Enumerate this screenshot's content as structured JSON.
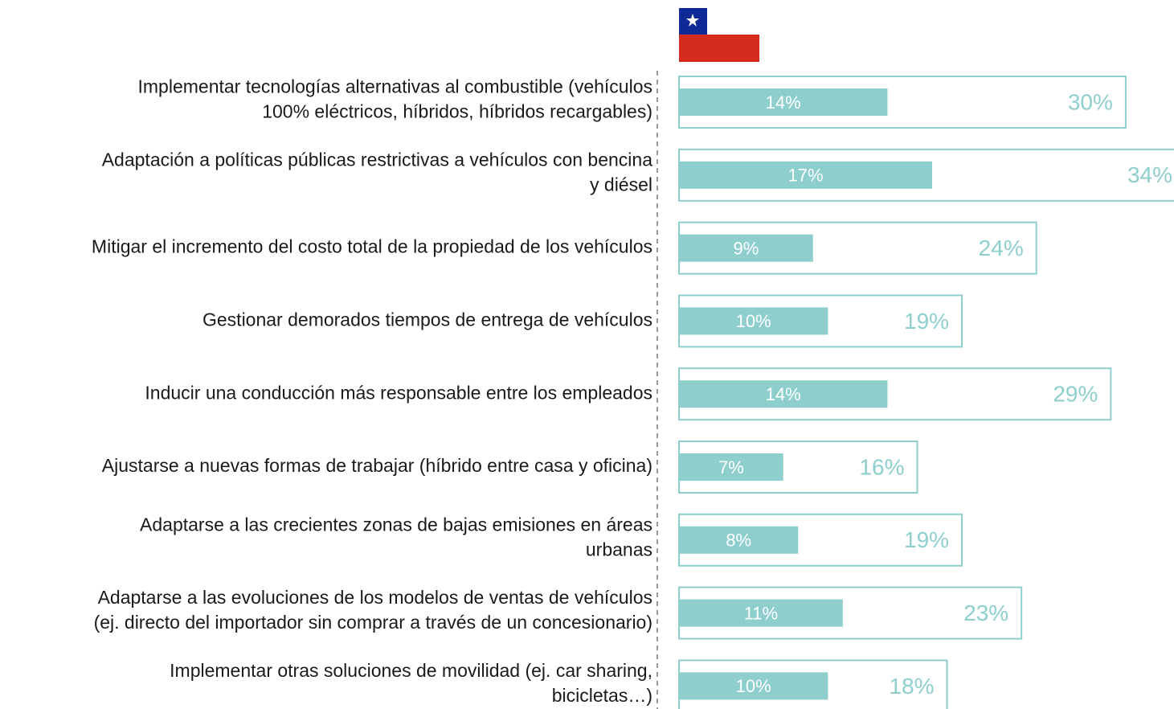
{
  "chart_data": {
    "type": "bar",
    "orientation": "horizontal",
    "overlay": true,
    "categories": [
      [
        "Implementar tecnologías alternativas al combustible (vehículos",
        "100% eléctricos, híbridos, híbridos recargables)"
      ],
      [
        "Adaptación a políticas públicas restrictivas a vehículos con  bencina",
        "y diésel"
      ],
      [
        "Mitigar el incremento del costo total de la propiedad de los vehículos"
      ],
      [
        "Gestionar demorados tiempos de entrega de vehículos"
      ],
      [
        "Inducir una conducción más responsable entre los empleados"
      ],
      [
        "Ajustarse a nuevas formas de trabajar (híbrido entre casa y oficina)"
      ],
      [
        "Adaptarse a las crecientes zonas de bajas emisiones en áreas",
        "urbanas"
      ],
      [
        "Adaptarse a las evoluciones de los modelos de ventas de vehículos",
        "(ej. directo del importador sin comprar a través de un concesionario)"
      ],
      [
        "Implementar otras soluciones de movilidad (ej. car sharing,",
        "bicicletas…)"
      ]
    ],
    "series": [
      {
        "style": "outline",
        "color": "#8ecfce",
        "values": [
          30,
          34,
          24,
          19,
          29,
          16,
          19,
          23,
          18
        ],
        "value_labels": [
          "30%",
          "34%",
          "24%",
          "19%",
          "29%",
          "16%",
          "19%",
          "23%",
          "18%"
        ]
      },
      {
        "style": "filled",
        "color": "#8ecfce",
        "values": [
          14,
          17,
          9,
          10,
          14,
          7,
          8,
          11,
          10
        ],
        "value_labels": [
          "14%",
          "17%",
          "9%",
          "10%",
          "14%",
          "7%",
          "8%",
          "11%",
          "10%"
        ]
      }
    ]
  }
}
